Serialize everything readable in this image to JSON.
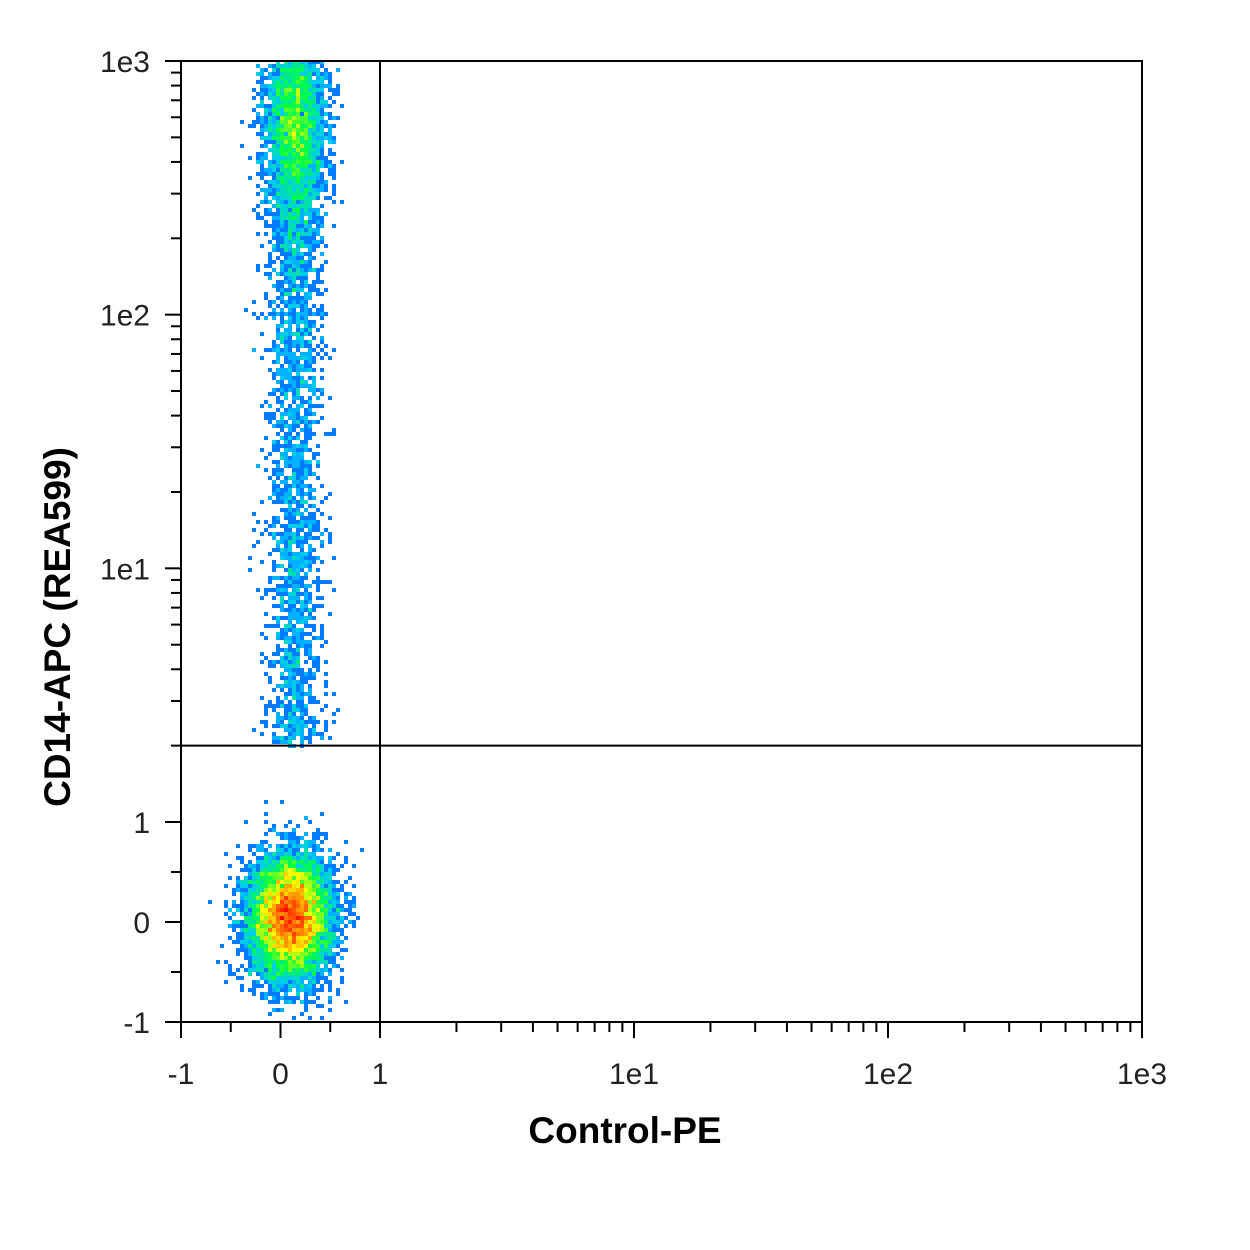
{
  "chart_data": {
    "type": "scatter",
    "subtype": "flow-cytometry-density-dotplot",
    "title": "",
    "xlabel": "Control-PE",
    "ylabel": "CD14-APC (REA599)",
    "x_scale": "biexponential (linear from -1 to 1, log from 1 to 1e3)",
    "y_scale": "biexponential (linear from -1 to 1, log from 1 to 1e3)",
    "xlim": [
      -1,
      1000
    ],
    "ylim": [
      -1,
      1000
    ],
    "x_ticks": [
      {
        "value": -1,
        "label": "-1"
      },
      {
        "value": 0,
        "label": "0"
      },
      {
        "value": 1,
        "label": "1"
      },
      {
        "value": 10,
        "label": "1e1"
      },
      {
        "value": 100,
        "label": "1e2"
      },
      {
        "value": 1000,
        "label": "1e3"
      }
    ],
    "y_ticks": [
      {
        "value": -1,
        "label": "-1"
      },
      {
        "value": 0,
        "label": "0"
      },
      {
        "value": 1,
        "label": "1"
      },
      {
        "value": 10,
        "label": "1e1"
      },
      {
        "value": 100,
        "label": "1e2"
      },
      {
        "value": 1000,
        "label": "1e3"
      }
    ],
    "quadrant_gates": {
      "x": 1,
      "y": 2
    },
    "populations": [
      {
        "description": "CD14-negative cluster (density peak)",
        "x_center": 0.1,
        "y_center": 0.05,
        "x_sd": 0.2,
        "y_sd": 0.3,
        "peak_color": "#ff2000"
      },
      {
        "description": "CD14-positive cluster",
        "x_center": 0.15,
        "y_center": 550,
        "x_sd": 0.15,
        "y_spread_log10": 0.2,
        "peak_color": "#2a7ad0"
      },
      {
        "description": "intermediate smear between clusters",
        "x_center": 0.15,
        "y_range": [
          2,
          300
        ]
      }
    ],
    "colormap": [
      "#0000ff",
      "#00c8ff",
      "#00ff40",
      "#ffff00",
      "#ff8000",
      "#ff0000"
    ],
    "grid": false,
    "legend": "none"
  }
}
